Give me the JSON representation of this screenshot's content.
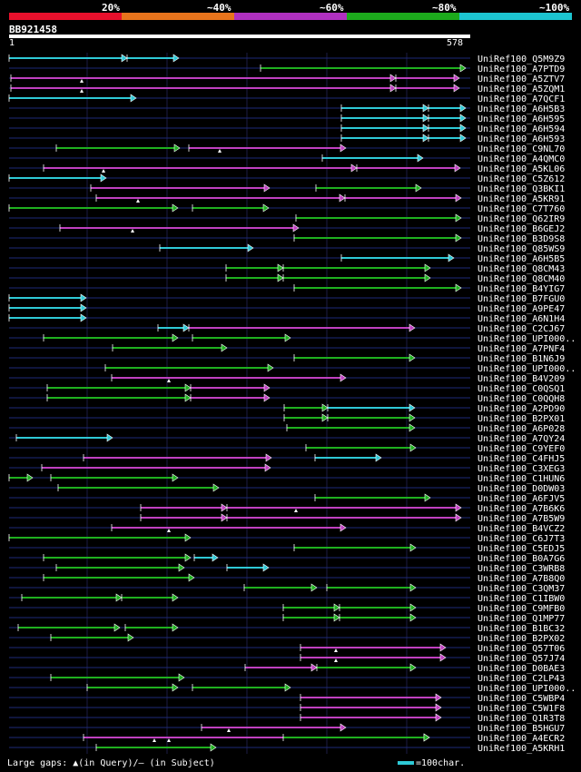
{
  "legend": {
    "labels": [
      "20%",
      "~40%",
      "~60%",
      "~80%",
      "~100%"
    ],
    "colors": [
      "#e8102c",
      "#e8741c",
      "#b030c0",
      "#1caa1c",
      "#1cc4d0"
    ]
  },
  "query": {
    "id": "BB921458",
    "start": "1",
    "end": "578"
  },
  "hits": [
    {
      "label": "UniRef100_Q5M9Z9",
      "segs": [
        [
          10,
          140,
          "#2ec9d6"
        ],
        [
          140,
          197,
          "#2ec9d6"
        ]
      ],
      "gaps": []
    },
    {
      "label": "UniRef100_A7PTD9",
      "segs": [
        [
          287,
          513,
          "#1fb01f"
        ]
      ],
      "gaps": []
    },
    {
      "label": "UniRef100_A5ZTV7",
      "segs": [
        [
          12,
          436,
          "#c040c0"
        ],
        [
          436,
          506,
          "#c040c0"
        ]
      ],
      "gaps": [
        90
      ]
    },
    {
      "label": "UniRef100_A5ZQM1",
      "segs": [
        [
          12,
          436,
          "#c040c0"
        ],
        [
          436,
          506,
          "#c040c0"
        ]
      ],
      "gaps": [
        90
      ]
    },
    {
      "label": "UniRef100_A7QCF1",
      "segs": [
        [
          10,
          150,
          "#2ec9d6"
        ]
      ],
      "gaps": []
    },
    {
      "label": "UniRef100_A6H5B3",
      "segs": [
        [
          376,
          472,
          "#2ec9d6"
        ],
        [
          472,
          513,
          "#2ec9d6"
        ]
      ],
      "gaps": []
    },
    {
      "label": "UniRef100_A6H595",
      "segs": [
        [
          376,
          472,
          "#2ec9d6"
        ],
        [
          472,
          513,
          "#2ec9d6"
        ]
      ],
      "gaps": []
    },
    {
      "label": "UniRef100_A6H594",
      "segs": [
        [
          376,
          472,
          "#2ec9d6"
        ],
        [
          472,
          513,
          "#2ec9d6"
        ]
      ],
      "gaps": []
    },
    {
      "label": "UniRef100_A6H593",
      "segs": [
        [
          376,
          472,
          "#2ec9d6"
        ],
        [
          472,
          513,
          "#2ec9d6"
        ]
      ],
      "gaps": []
    },
    {
      "label": "UniRef100_C9NL70",
      "segs": [
        [
          62,
          198,
          "#1fb01f"
        ],
        [
          208,
          381,
          "#c040c0"
        ]
      ],
      "gaps": [
        242
      ]
    },
    {
      "label": "UniRef100_A4QMC0",
      "segs": [
        [
          355,
          466,
          "#2ec9d6"
        ]
      ],
      "gaps": []
    },
    {
      "label": "UniRef100_A5KL06",
      "segs": [
        [
          48,
          393,
          "#c040c0"
        ],
        [
          393,
          507,
          "#c040c0"
        ]
      ],
      "gaps": [
        114
      ]
    },
    {
      "label": "UniRef100_C5Z612",
      "segs": [
        [
          10,
          117,
          "#2ec9d6"
        ]
      ],
      "gaps": []
    },
    {
      "label": "UniRef100_Q3BKI1",
      "segs": [
        [
          100,
          297,
          "#c040c0"
        ],
        [
          348,
          464,
          "#1fb01f"
        ]
      ],
      "gaps": []
    },
    {
      "label": "UniRef100_A5KR91",
      "segs": [
        [
          106,
          380,
          "#c040c0"
        ],
        [
          380,
          508,
          "#c040c0"
        ]
      ],
      "gaps": [
        152
      ]
    },
    {
      "label": "UniRef100_C7T760",
      "segs": [
        [
          10,
          196,
          "#1fb01f"
        ],
        [
          212,
          296,
          "#1fb01f"
        ]
      ],
      "gaps": []
    },
    {
      "label": "UniRef100_Q62IR9",
      "segs": [
        [
          326,
          508,
          "#1fb01f"
        ]
      ],
      "gaps": []
    },
    {
      "label": "UniRef100_B6GEJ2",
      "segs": [
        [
          66,
          329,
          "#c040c0"
        ]
      ],
      "gaps": [
        146
      ]
    },
    {
      "label": "UniRef100_B3D9S8",
      "segs": [
        [
          324,
          508,
          "#1fb01f"
        ]
      ],
      "gaps": []
    },
    {
      "label": "UniRef100_Q85WS9",
      "segs": [
        [
          176,
          279,
          "#2ec9d6"
        ]
      ],
      "gaps": []
    },
    {
      "label": "UniRef100_A6H5B5",
      "segs": [
        [
          376,
          500,
          "#2ec9d6"
        ]
      ],
      "gaps": []
    },
    {
      "label": "UniRef100_Q8CM43",
      "segs": [
        [
          249,
          312,
          "#1fb01f"
        ],
        [
          312,
          474,
          "#1fb01f"
        ]
      ],
      "gaps": []
    },
    {
      "label": "UniRef100_Q8CM40",
      "segs": [
        [
          249,
          312,
          "#1fb01f"
        ],
        [
          312,
          474,
          "#1fb01f"
        ]
      ],
      "gaps": []
    },
    {
      "label": "UniRef100_B4YIG7",
      "segs": [
        [
          324,
          508,
          "#1fb01f"
        ]
      ],
      "gaps": []
    },
    {
      "label": "UniRef100_B7FGU0",
      "segs": [
        [
          10,
          95,
          "#2ec9d6"
        ]
      ],
      "gaps": []
    },
    {
      "label": "UniRef100_A9PE47",
      "segs": [
        [
          10,
          95,
          "#2ec9d6"
        ]
      ],
      "gaps": []
    },
    {
      "label": "UniRef100_A6N1H4",
      "segs": [
        [
          10,
          95,
          "#2ec9d6"
        ]
      ],
      "gaps": []
    },
    {
      "label": "UniRef100_C2CJ67",
      "segs": [
        [
          174,
          208,
          "#2ec9d6"
        ],
        [
          208,
          457,
          "#c040c0"
        ]
      ],
      "gaps": []
    },
    {
      "label": "UniRef100_UPI000..",
      "segs": [
        [
          48,
          196,
          "#1fb01f"
        ],
        [
          212,
          320,
          "#1fb01f"
        ]
      ],
      "gaps": []
    },
    {
      "label": "UniRef100_A7PNF4",
      "segs": [
        [
          124,
          250,
          "#1fb01f"
        ]
      ],
      "gaps": []
    },
    {
      "label": "UniRef100_B1N6J9",
      "segs": [
        [
          324,
          457,
          "#1fb01f"
        ]
      ],
      "gaps": []
    },
    {
      "label": "UniRef100_UPI000..",
      "segs": [
        [
          116,
          301,
          "#1fb01f"
        ]
      ],
      "gaps": []
    },
    {
      "label": "UniRef100_B4V209",
      "segs": [
        [
          123,
          381,
          "#c040c0"
        ]
      ],
      "gaps": [
        186
      ]
    },
    {
      "label": "UniRef100_C0QSQ1",
      "segs": [
        [
          52,
          210,
          "#1fb01f"
        ],
        [
          210,
          297,
          "#c040c0"
        ]
      ],
      "gaps": []
    },
    {
      "label": "UniRef100_C0QQH8",
      "segs": [
        [
          52,
          210,
          "#1fb01f"
        ],
        [
          210,
          297,
          "#c040c0"
        ]
      ],
      "gaps": []
    },
    {
      "label": "UniRef100_A2PD90",
      "segs": [
        [
          313,
          361,
          "#1fb01f"
        ],
        [
          361,
          457,
          "#2ec9d6"
        ]
      ],
      "gaps": []
    },
    {
      "label": "UniRef100_B2PX01",
      "segs": [
        [
          313,
          361,
          "#1fb01f"
        ],
        [
          361,
          457,
          "#1fb01f"
        ]
      ],
      "gaps": []
    },
    {
      "label": "UniRef100_A6P028",
      "segs": [
        [
          316,
          457,
          "#1fb01f"
        ]
      ],
      "gaps": []
    },
    {
      "label": "UniRef100_A7QY24",
      "segs": [
        [
          18,
          124,
          "#2ec9d6"
        ]
      ],
      "gaps": []
    },
    {
      "label": "UniRef100_C9YEF0",
      "segs": [
        [
          337,
          458,
          "#1fb01f"
        ]
      ],
      "gaps": []
    },
    {
      "label": "UniRef100_C4FHJ5",
      "segs": [
        [
          92,
          299,
          "#c040c0"
        ],
        [
          347,
          420,
          "#2ec9d6"
        ]
      ],
      "gaps": []
    },
    {
      "label": "UniRef100_C3XEG3",
      "segs": [
        [
          46,
          298,
          "#c040c0"
        ]
      ],
      "gaps": []
    },
    {
      "label": "UniRef100_C1HUN6",
      "segs": [
        [
          10,
          36,
          "#1fb01f"
        ],
        [
          56,
          196,
          "#1fb01f"
        ]
      ],
      "gaps": []
    },
    {
      "label": "UniRef100_D0DW03",
      "segs": [
        [
          64,
          241,
          "#1fb01f"
        ]
      ],
      "gaps": []
    },
    {
      "label": "UniRef100_A6FJV5",
      "segs": [
        [
          347,
          474,
          "#1fb01f"
        ]
      ],
      "gaps": []
    },
    {
      "label": "UniRef100_A7B6K6",
      "segs": [
        [
          155,
          250,
          "#c040c0"
        ],
        [
          250,
          508,
          "#c040c0"
        ]
      ],
      "gaps": [
        326
      ]
    },
    {
      "label": "UniRef100_A7B5W9",
      "segs": [
        [
          155,
          250,
          "#c040c0"
        ],
        [
          250,
          508,
          "#c040c0"
        ]
      ],
      "gaps": []
    },
    {
      "label": "UniRef100_B4VCZ2",
      "segs": [
        [
          123,
          381,
          "#c040c0"
        ]
      ],
      "gaps": [
        186
      ]
    },
    {
      "label": "UniRef100_C6J7T3",
      "segs": [
        [
          10,
          210,
          "#1fb01f"
        ]
      ],
      "gaps": []
    },
    {
      "label": "UniRef100_C5EDJ5",
      "segs": [
        [
          324,
          458,
          "#1fb01f"
        ]
      ],
      "gaps": []
    },
    {
      "label": "UniRef100_B0A7G6",
      "segs": [
        [
          48,
          210,
          "#1fb01f"
        ],
        [
          214,
          240,
          "#2ec9d6"
        ]
      ],
      "gaps": []
    },
    {
      "label": "UniRef100_C3WRB8",
      "segs": [
        [
          62,
          203,
          "#1fb01f"
        ],
        [
          250,
          296,
          "#2ec9d6"
        ]
      ],
      "gaps": []
    },
    {
      "label": "UniRef100_A7B8Q0",
      "segs": [
        [
          48,
          214,
          "#1fb01f"
        ]
      ],
      "gaps": []
    },
    {
      "label": "UniRef100_C3QM37",
      "segs": [
        [
          269,
          349,
          "#1fb01f"
        ],
        [
          360,
          458,
          "#1fb01f"
        ]
      ],
      "gaps": []
    },
    {
      "label": "UniRef100_C1IBW0",
      "segs": [
        [
          24,
          134,
          "#1fb01f"
        ],
        [
          134,
          196,
          "#1fb01f"
        ]
      ],
      "gaps": []
    },
    {
      "label": "UniRef100_C9MFB0",
      "segs": [
        [
          312,
          374,
          "#1fb01f"
        ],
        [
          374,
          458,
          "#1fb01f"
        ]
      ],
      "gaps": []
    },
    {
      "label": "UniRef100_Q1MP77",
      "segs": [
        [
          312,
          374,
          "#1fb01f"
        ],
        [
          374,
          458,
          "#1fb01f"
        ]
      ],
      "gaps": []
    },
    {
      "label": "UniRef100_B1BC32",
      "segs": [
        [
          20,
          132,
          "#1fb01f"
        ],
        [
          138,
          196,
          "#1fb01f"
        ]
      ],
      "gaps": []
    },
    {
      "label": "UniRef100_B2PX02",
      "segs": [
        [
          56,
          147,
          "#1fb01f"
        ]
      ],
      "gaps": []
    },
    {
      "label": "UniRef100_Q57T06",
      "segs": [
        [
          331,
          491,
          "#c040c0"
        ]
      ],
      "gaps": [
        370
      ]
    },
    {
      "label": "UniRef100_Q57J74",
      "segs": [
        [
          331,
          491,
          "#c040c0"
        ]
      ],
      "gaps": [
        370
      ]
    },
    {
      "label": "UniRef100_D0BAE3",
      "segs": [
        [
          270,
          349,
          "#c040c0"
        ],
        [
          349,
          458,
          "#1fb01f"
        ]
      ],
      "gaps": []
    },
    {
      "label": "UniRef100_C2LP43",
      "segs": [
        [
          56,
          203,
          "#1fb01f"
        ]
      ],
      "gaps": []
    },
    {
      "label": "UniRef100_UPI000..",
      "segs": [
        [
          96,
          196,
          "#1fb01f"
        ],
        [
          212,
          320,
          "#1fb01f"
        ]
      ],
      "gaps": []
    },
    {
      "label": "UniRef100_C5WBP4",
      "segs": [
        [
          331,
          486,
          "#c040c0"
        ]
      ],
      "gaps": []
    },
    {
      "label": "UniRef100_C5W1F8",
      "segs": [
        [
          331,
          486,
          "#c040c0"
        ]
      ],
      "gaps": []
    },
    {
      "label": "UniRef100_Q1R3T8",
      "segs": [
        [
          331,
          486,
          "#c040c0"
        ]
      ],
      "gaps": []
    },
    {
      "label": "UniRef100_B5HGU7",
      "segs": [
        [
          222,
          381,
          "#c040c0"
        ]
      ],
      "gaps": [
        252
      ]
    },
    {
      "label": "UniRef100_A4ECR2",
      "segs": [
        [
          92,
          473,
          "#c040c0"
        ],
        [
          312,
          473,
          "#1fb01f"
        ]
      ],
      "gaps": [
        170,
        186
      ]
    },
    {
      "label": "UniRef100_A5KRH1",
      "segs": [
        [
          106,
          238,
          "#1fb01f"
        ]
      ],
      "gaps": []
    }
  ],
  "footer": {
    "text": "Large gaps: ▲(in Query)/– (in Subject)"
  },
  "scale": {
    "text": "=100char."
  }
}
